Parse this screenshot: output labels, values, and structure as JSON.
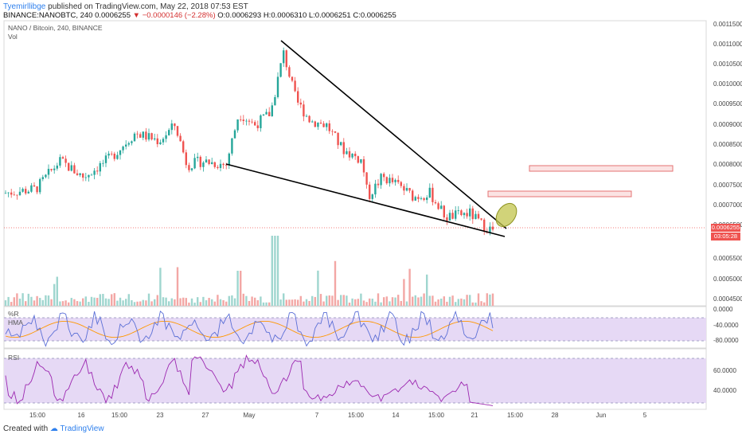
{
  "header": {
    "user": "Tyemirllibge",
    "published": " published on TradingView.com, May 22, 2018 07:53 EST",
    "symbol": "BINANCE:NANOBTC, 240",
    "last": "0.0006255",
    "change": "▼ −0.0000146 (−2.28%)",
    "ohlc": "O:0.0006293 H:0.0006310 L:0.0006251 C:0.0006255"
  },
  "legend": {
    "title": "NANO / Bitcoin, 240, BINANCE",
    "vol": "Vol",
    "wr": "%R",
    "hma": "HMA",
    "rsi": "RSI"
  },
  "price_axis": [
    "0.0011500",
    "0.0011000",
    "0.0010500",
    "0.0010000",
    "0.0009500",
    "0.0009000",
    "0.0008500",
    "0.0008000",
    "0.0007500",
    "0.0007000",
    "0.0006500",
    "0.0005500",
    "0.0005000",
    "0.0004500"
  ],
  "wr_axis": [
    "0.0000",
    "-40.0000",
    "-80.0000"
  ],
  "rsi_axis": [
    "60.0000",
    "40.0000"
  ],
  "last_price_tag": "0.0006255",
  "countdown_tag": "03:05:28",
  "time_axis": [
    "15:00",
    "16",
    "15:00",
    "23",
    "27",
    "May",
    "7",
    "15:00",
    "14",
    "15:00",
    "21",
    "15:00",
    "28",
    "Jun",
    "5"
  ],
  "footer": {
    "created": "Created with",
    "brand": "TradingView"
  },
  "colors": {
    "up": "#26a69a",
    "down": "#ef5350",
    "wr_line": "#5b6fd6",
    "hma_line": "#ff9800",
    "rsi_line": "#9c27b0",
    "band": "#e6d9f5",
    "zone_fill": "#fbe3e3",
    "zone_border": "#e57373",
    "ellipse": "#a8ad2a"
  },
  "chart_data": {
    "type": "candlestick",
    "symbol": "NANO / Bitcoin",
    "interval": "240",
    "ylim": [
      0.00044,
      0.00116
    ],
    "last_close": 0.0006255,
    "key_points": [
      {
        "x": "start",
        "close": 0.00072
      },
      {
        "x": "16",
        "close": 0.00075
      },
      {
        "x": "23",
        "close": 0.00088
      },
      {
        "x": "27",
        "close": 0.00079
      },
      {
        "x": "May",
        "close": 0.00087
      },
      {
        "x": "May 3",
        "high": 0.00111,
        "close": 0.00105
      },
      {
        "x": "7",
        "close": 0.0009
      },
      {
        "x": "15:00",
        "close": 0.00081
      },
      {
        "x": "14",
        "close": 0.00074
      },
      {
        "x": "21",
        "close": 0.00066
      },
      {
        "x": "22",
        "close": 0.0006255
      }
    ],
    "resistance_zones": [
      [
        0.000775,
        0.000788
      ],
      [
        0.000705,
        0.000715
      ]
    ],
    "wr_ylim": [
      -100,
      0
    ],
    "rsi_ylim": [
      20,
      80
    ]
  }
}
